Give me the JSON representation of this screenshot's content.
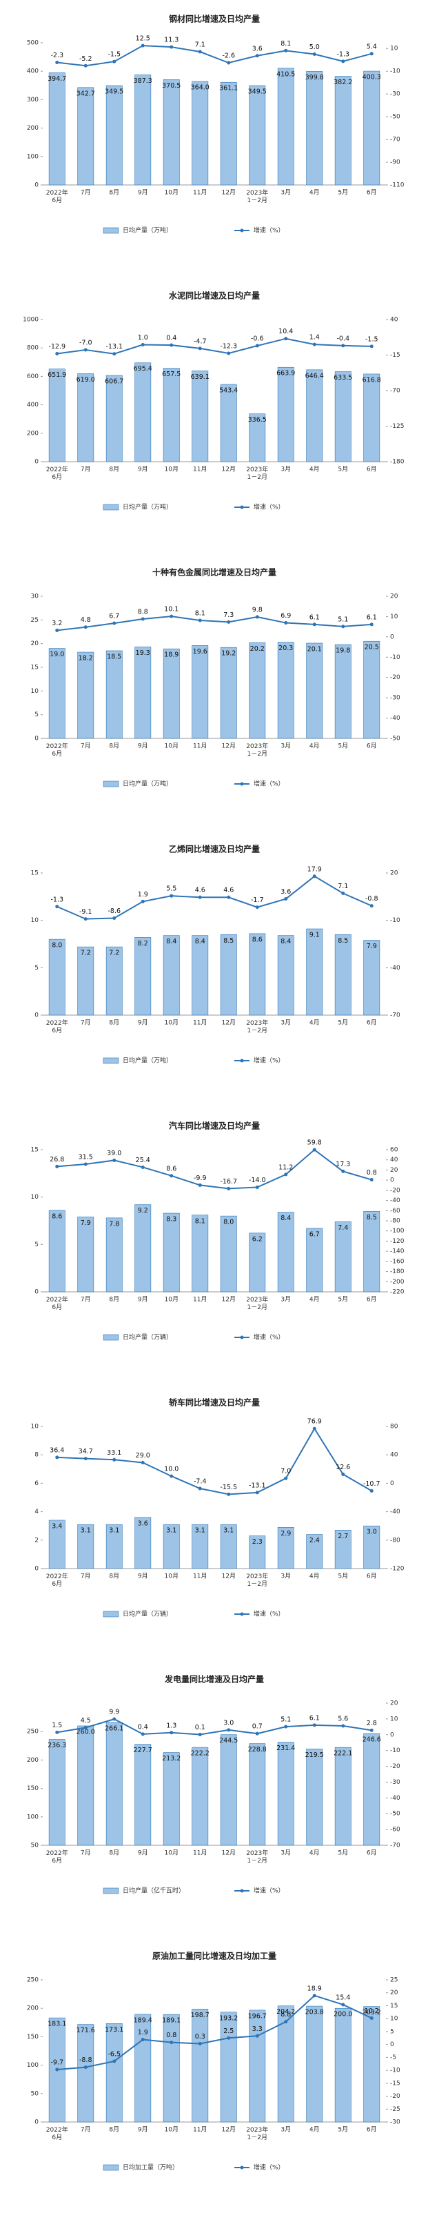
{
  "chart_data": [
    {
      "type": "bar_line",
      "title": "钢材同比增速及日均产量",
      "categories": [
        "2022年\n6月",
        "7月",
        "8月",
        "9月",
        "10月",
        "11月",
        "12月",
        "2023年\n1－2月",
        "3月",
        "4月",
        "5月",
        "6月"
      ],
      "ylim": [
        0,
        500
      ],
      "yticks": [
        0,
        100,
        200,
        300,
        400,
        500
      ],
      "y2lim": [
        -110,
        15
      ],
      "y2ticks": [
        10,
        -10,
        -30,
        -50,
        -70,
        -90,
        -110
      ],
      "series": [
        {
          "name": "日均产量（万吨）",
          "color": "#9dc3e6",
          "values": [
            394.7,
            342.7,
            349.5,
            387.3,
            370.5,
            364.0,
            361.1,
            349.5,
            410.5,
            399.8,
            382.2,
            400.3
          ],
          "value_labels": [
            "394.7",
            "342.7",
            "349.5",
            "387.3",
            "370.5",
            "364.0",
            "361.1",
            "349.5",
            "410.5",
            "399.8",
            "382.2",
            "400.3"
          ]
        },
        {
          "name": "增速（%）",
          "color": "#2e75b6",
          "axis": "y2",
          "values": [
            -2.3,
            -5.2,
            -1.5,
            12.5,
            11.3,
            7.1,
            -2.6,
            3.6,
            8.1,
            5.0,
            -1.3,
            5.4
          ],
          "value_labels": [
            "-2.3",
            "-5.2",
            "-1.5",
            "12.5",
            "11.3",
            "7.1",
            "-2.6",
            "3.6",
            "8.1",
            "5.0",
            "-1.3",
            "5.4"
          ]
        }
      ]
    },
    {
      "type": "bar_line",
      "title": "水泥同比增速及日均产量",
      "categories": [
        "2022年\n6月",
        "7月",
        "8月",
        "9月",
        "10月",
        "11月",
        "12月",
        "2023年\n1－2月",
        "3月",
        "4月",
        "5月",
        "6月"
      ],
      "ylim": [
        0,
        1000
      ],
      "yticks": [
        0,
        200,
        400,
        600,
        800,
        1000
      ],
      "y2lim": [
        -180,
        40
      ],
      "y2ticks": [
        40,
        -15,
        -70,
        -125,
        -180
      ],
      "series": [
        {
          "name": "日均产量（万吨）",
          "color": "#9dc3e6",
          "values": [
            651.9,
            619.0,
            606.7,
            695.4,
            657.5,
            639.1,
            543.4,
            336.5,
            663.9,
            646.4,
            633.5,
            616.8
          ],
          "value_labels": [
            "651.9",
            "619.0",
            "606.7",
            "695.4",
            "657.5",
            "639.1",
            "543.4",
            "336.5",
            "663.9",
            "646.4",
            "633.5",
            "616.8"
          ]
        },
        {
          "name": "增速（%）",
          "color": "#2e75b6",
          "axis": "y2",
          "values": [
            -12.9,
            -7.0,
            -13.1,
            1.0,
            0.4,
            -4.7,
            -12.3,
            -0.6,
            10.4,
            1.4,
            -0.4,
            -1.5
          ],
          "value_labels": [
            "-12.9",
            "-7.0",
            "-13.1",
            "1.0",
            "0.4",
            "-4.7",
            "-12.3",
            "-0.6",
            "10.4",
            "1.4",
            "-0.4",
            "-1.5"
          ]
        }
      ]
    },
    {
      "type": "bar_line",
      "title": "十种有色金属同比增速及日均产量",
      "categories": [
        "2022年\n6月",
        "7月",
        "8月",
        "9月",
        "10月",
        "11月",
        "12月",
        "2023年\n1－2月",
        "3月",
        "4月",
        "5月",
        "6月"
      ],
      "ylim": [
        0,
        30
      ],
      "yticks": [
        0,
        5,
        10,
        15,
        20,
        25,
        30
      ],
      "y2lim": [
        -50,
        20
      ],
      "y2ticks": [
        20,
        10,
        0,
        -10,
        -20,
        -30,
        -40,
        -50
      ],
      "series": [
        {
          "name": "日均产量（万吨）",
          "color": "#9dc3e6",
          "values": [
            19.0,
            18.2,
            18.5,
            19.3,
            18.9,
            19.6,
            19.2,
            20.2,
            20.3,
            20.1,
            19.8,
            20.5
          ],
          "value_labels": [
            "19.0",
            "18.2",
            "18.5",
            "19.3",
            "18.9",
            "19.6",
            "19.2",
            "20.2",
            "20.3",
            "20.1",
            "19.8",
            "20.5"
          ]
        },
        {
          "name": "增速（%）",
          "color": "#2e75b6",
          "axis": "y2",
          "values": [
            3.2,
            4.8,
            6.7,
            8.8,
            10.1,
            8.1,
            7.3,
            9.8,
            6.9,
            6.1,
            5.1,
            6.1
          ],
          "value_labels": [
            "3.2",
            "4.8",
            "6.7",
            "8.8",
            "10.1",
            "8.1",
            "7.3",
            "9.8",
            "6.9",
            "6.1",
            "5.1",
            "6.1"
          ]
        }
      ]
    },
    {
      "type": "bar_line",
      "title": "乙烯同比增速及日均产量",
      "categories": [
        "2022年\n6月",
        "7月",
        "8月",
        "9月",
        "10月",
        "11月",
        "12月",
        "2023年\n1－2月",
        "3月",
        "4月",
        "5月",
        "6月"
      ],
      "ylim": [
        0,
        15
      ],
      "yticks": [
        0,
        5,
        10,
        15
      ],
      "y2lim": [
        -70,
        20
      ],
      "y2ticks": [
        20,
        -10,
        -40,
        -70
      ],
      "series": [
        {
          "name": "日均产量（万吨）",
          "color": "#9dc3e6",
          "values": [
            8.0,
            7.2,
            7.2,
            8.2,
            8.4,
            8.4,
            8.5,
            8.6,
            8.4,
            9.1,
            8.5,
            7.9
          ],
          "value_labels": [
            "8.0",
            "7.2",
            "7.2",
            "8.2",
            "8.4",
            "8.4",
            "8.5",
            "8.6",
            "8.4",
            "9.1",
            "8.5",
            "7.9"
          ]
        },
        {
          "name": "增速（%）",
          "color": "#2e75b6",
          "axis": "y2",
          "values": [
            -1.3,
            -9.1,
            -8.6,
            1.9,
            5.5,
            4.6,
            4.6,
            -1.7,
            3.6,
            17.9,
            7.1,
            -0.8
          ],
          "value_labels": [
            "-1.3",
            "-9.1",
            "-8.6",
            "1.9",
            "5.5",
            "4.6",
            "4.6",
            "-1.7",
            "3.6",
            "17.9",
            "7.1",
            "-0.8"
          ]
        }
      ]
    },
    {
      "type": "bar_line",
      "title": "汽车同比增速及日均产量",
      "categories": [
        "2022年\n6月",
        "7月",
        "8月",
        "9月",
        "10月",
        "11月",
        "12月",
        "2023年\n1－2月",
        "3月",
        "4月",
        "5月",
        "6月"
      ],
      "ylim": [
        0,
        15
      ],
      "yticks": [
        0,
        5,
        10,
        15
      ],
      "y2lim": [
        -220,
        60
      ],
      "y2ticks": [
        60,
        40,
        20,
        0,
        -20,
        -40,
        -60,
        -80,
        -100,
        -120,
        -140,
        -160,
        -180,
        -200,
        -220
      ],
      "series": [
        {
          "name": "日均产量（万辆）",
          "color": "#9dc3e6",
          "values": [
            8.6,
            7.9,
            7.8,
            9.2,
            8.3,
            8.1,
            8.0,
            6.2,
            8.4,
            6.7,
            7.4,
            8.5
          ],
          "value_labels": [
            "8.6",
            "7.9",
            "7.8",
            "9.2",
            "8.3",
            "8.1",
            "8.0",
            "6.2",
            "8.4",
            "6.7",
            "7.4",
            "8.5"
          ]
        },
        {
          "name": "增速（%）",
          "color": "#2e75b6",
          "axis": "y2",
          "values": [
            26.8,
            31.5,
            39.0,
            25.4,
            8.6,
            -9.9,
            -16.7,
            -14.0,
            11.2,
            59.8,
            17.3,
            0.8
          ],
          "value_labels": [
            "26.8",
            "31.5",
            "39.0",
            "25.4",
            "8.6",
            "-9.9",
            "-16.7",
            "-14.0",
            "11.2",
            "59.8",
            "17.3",
            "0.8"
          ]
        }
      ]
    },
    {
      "type": "bar_line",
      "title": "轿车同比增速及日均产量",
      "categories": [
        "2022年\n6月",
        "7月",
        "8月",
        "9月",
        "10月",
        "11月",
        "12月",
        "2023年\n1－2月",
        "3月",
        "4月",
        "5月",
        "6月"
      ],
      "ylim": [
        0,
        10
      ],
      "yticks": [
        0,
        2,
        4,
        6,
        8,
        10
      ],
      "y2lim": [
        -120,
        80
      ],
      "y2ticks": [
        80,
        40,
        0,
        -40,
        -80,
        -120
      ],
      "series": [
        {
          "name": "日均产量（万辆）",
          "color": "#9dc3e6",
          "values": [
            3.4,
            3.1,
            3.1,
            3.6,
            3.1,
            3.1,
            3.1,
            2.3,
            2.9,
            2.4,
            2.7,
            3.0
          ],
          "value_labels": [
            "3.4",
            "3.1",
            "3.1",
            "3.6",
            "3.1",
            "3.1",
            "3.1",
            "2.3",
            "2.9",
            "2.4",
            "2.7",
            "3.0"
          ]
        },
        {
          "name": "增速（%）",
          "color": "#2e75b6",
          "axis": "y2",
          "values": [
            36.4,
            34.7,
            33.1,
            29.0,
            10.0,
            -7.4,
            -15.5,
            -13.1,
            7.0,
            76.9,
            12.6,
            -10.7
          ],
          "value_labels": [
            "36.4",
            "34.7",
            "33.1",
            "29.0",
            "10.0",
            "-7.4",
            "-15.5",
            "-13.1",
            "7.0",
            "76.9",
            "12.6",
            "-10.7"
          ]
        }
      ]
    },
    {
      "type": "bar_line",
      "title": "发电量同比增速及日均产量",
      "categories": [
        "2022年\n6月",
        "7月",
        "8月",
        "9月",
        "10月",
        "11月",
        "12月",
        "2023年\n1－2月",
        "3月",
        "4月",
        "5月",
        "6月"
      ],
      "ylim": [
        50,
        300
      ],
      "yticks": [
        50,
        100,
        150,
        200,
        250
      ],
      "y2lim": [
        -70,
        20
      ],
      "y2ticks": [
        20,
        10,
        0,
        -10,
        -20,
        -30,
        -40,
        -50,
        -60,
        -70
      ],
      "series": [
        {
          "name": "日均产量（亿千瓦时）",
          "color": "#9dc3e6",
          "values": [
            236.3,
            260.0,
            266.1,
            227.7,
            213.2,
            222.2,
            244.5,
            228.8,
            231.4,
            219.5,
            222.1,
            246.6
          ],
          "value_labels": [
            "236.3",
            "260.0",
            "266.1",
            "227.7",
            "213.2",
            "222.2",
            "244.5",
            "228.8",
            "231.4",
            "219.5",
            "222.1",
            "246.6"
          ]
        },
        {
          "name": "增速（%）",
          "color": "#2e75b6",
          "axis": "y2",
          "values": [
            1.5,
            4.5,
            9.9,
            0.4,
            1.3,
            0.1,
            3.0,
            0.7,
            5.1,
            6.1,
            5.6,
            2.8
          ],
          "value_labels": [
            "1.5",
            "4.5",
            "9.9",
            "0.4",
            "1.3",
            "0.1",
            "3.0",
            "0.7",
            "5.1",
            "6.1",
            "5.6",
            "2.8"
          ]
        }
      ]
    },
    {
      "type": "bar_line",
      "title": "原油加工量同比增速及日均加工量",
      "categories": [
        "2022年\n6月",
        "7月",
        "8月",
        "9月",
        "10月",
        "11月",
        "12月",
        "2023年\n1－2月",
        "3月",
        "4月",
        "5月",
        "6月"
      ],
      "ylim": [
        0,
        250
      ],
      "yticks": [
        0,
        50,
        100,
        150,
        200,
        250
      ],
      "y2lim": [
        -30,
        25
      ],
      "y2ticks": [
        25,
        20,
        15,
        10,
        5,
        0,
        -5,
        -10,
        -15,
        -20,
        -25,
        -30
      ],
      "series": [
        {
          "name": "日均加工量（万吨）",
          "color": "#9dc3e6",
          "values": [
            183.1,
            171.6,
            173.1,
            189.4,
            189.1,
            198.7,
            193.2,
            196.7,
            204.2,
            203.8,
            200.0,
            203.2
          ],
          "value_labels": [
            "183.1",
            "171.6",
            "173.1",
            "189.4",
            "189.1",
            "198.7",
            "193.2",
            "196.7",
            "204.2",
            "203.8",
            "200.0",
            "203.2"
          ]
        },
        {
          "name": "增速（%）",
          "color": "#2e75b6",
          "axis": "y2",
          "values": [
            -9.7,
            -8.8,
            -6.5,
            1.9,
            0.8,
            0.3,
            2.5,
            3.3,
            8.8,
            18.9,
            15.4,
            10.2
          ],
          "value_labels": [
            "-9.7",
            "-8.8",
            "-6.5",
            "1.9",
            "0.8",
            "0.3",
            "2.5",
            "3.3",
            "8.8",
            "18.9",
            "15.4",
            "10.2"
          ]
        }
      ]
    }
  ]
}
